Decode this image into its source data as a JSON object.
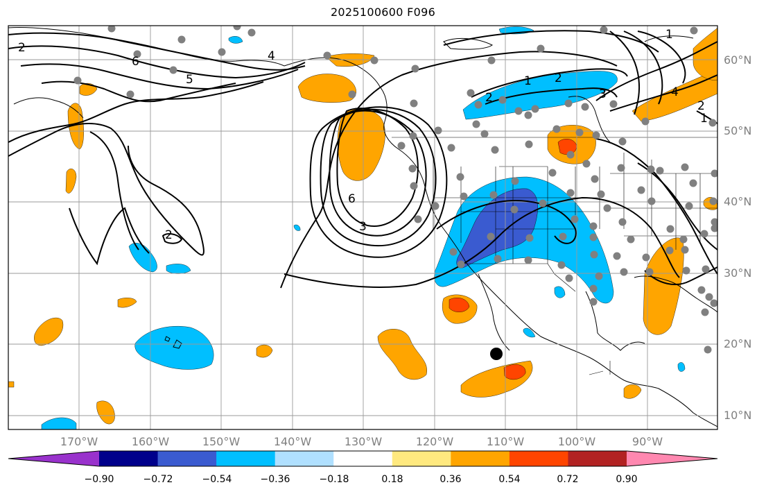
{
  "title": "2025100600 F096",
  "lat_labels": [
    "60°N",
    "50°N",
    "40°N",
    "30°N",
    "20°N",
    "10°N"
  ],
  "lon_labels": [
    "170°W",
    "160°W",
    "150°W",
    "140°W",
    "130°W",
    "120°W",
    "110°W",
    "100°W",
    "90°W"
  ],
  "contour_labels": [
    "2",
    "6",
    "5",
    "4",
    "2",
    "1",
    "2",
    "3",
    "4",
    "2",
    "1",
    "6",
    "3",
    "2",
    "1"
  ],
  "colorbar": {
    "ticks": [
      "−0.90",
      "−0.72",
      "−0.54",
      "−0.36",
      "−0.18",
      "0.18",
      "0.36",
      "0.54",
      "0.72",
      "0.90"
    ],
    "colors": [
      "#9932cc",
      "#00008b",
      "#3a5bd0",
      "#00bfff",
      "#b0e0ff",
      "#ffffff",
      "#ffe97f",
      "#ffa500",
      "#ff4500",
      "#b22222",
      "#ff88b0"
    ]
  },
  "shading_colors": {
    "pos_light": "#ffa500",
    "pos_strong": "#ff4500",
    "neg_light": "#00bfff",
    "neg_strong": "#3a5bd0"
  }
}
